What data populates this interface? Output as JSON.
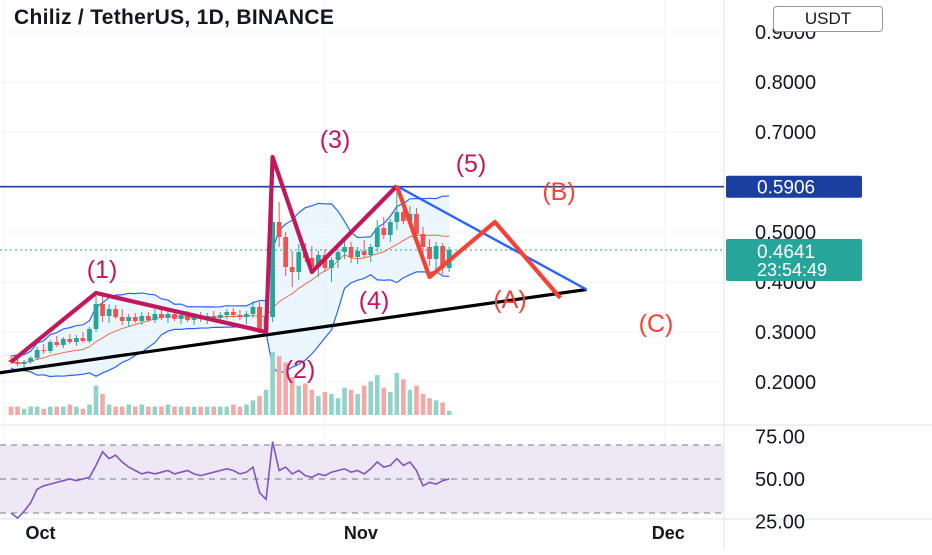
{
  "header": {
    "title": "Chiliz / TetherUS, 1D, BINANCE",
    "currency_button": "USDT"
  },
  "price_axis": {
    "ticks": [
      "0.9000",
      "0.8000",
      "0.7000",
      "0.5000",
      "0.4000",
      "0.3000",
      "0.2000"
    ],
    "line_label": "0.5906",
    "current_price": "0.4641",
    "countdown": "23:54:49"
  },
  "rsi_axis": {
    "ticks": [
      "75.00",
      "50.00",
      "25.00"
    ]
  },
  "time_axis": {
    "ticks": [
      "Oct",
      "Nov",
      "Dec"
    ]
  },
  "annotations": {
    "w1": "(1)",
    "w2": "(2)",
    "w3": "(3)",
    "w4": "(4)",
    "w5": "(5)",
    "wa": "(A)",
    "wb": "(B)",
    "wc": "(C)"
  },
  "colors": {
    "up": "#26a69a",
    "down": "#ef5350",
    "impulse": "#c2185b",
    "corrective": "#f44336",
    "bands": "#2962ff",
    "band_fill": "#e3f2fd",
    "rsi_line": "#7e57c2",
    "rsi_band": "#ede7f6",
    "level_line": "#1a3fa0"
  },
  "chart_data": {
    "type": "candlestick",
    "title": "Chiliz / TetherUS, 1D, BINANCE",
    "ylim": [
      0.1,
      0.95
    ],
    "candles": [
      [
        0.244,
        0.252,
        0.236,
        0.24
      ],
      [
        0.24,
        0.248,
        0.232,
        0.236
      ],
      [
        0.236,
        0.244,
        0.228,
        0.24
      ],
      [
        0.24,
        0.252,
        0.236,
        0.248
      ],
      [
        0.248,
        0.27,
        0.244,
        0.264
      ],
      [
        0.264,
        0.276,
        0.256,
        0.262
      ],
      [
        0.262,
        0.284,
        0.258,
        0.28
      ],
      [
        0.28,
        0.292,
        0.27,
        0.274
      ],
      [
        0.274,
        0.29,
        0.268,
        0.286
      ],
      [
        0.286,
        0.296,
        0.276,
        0.28
      ],
      [
        0.28,
        0.294,
        0.272,
        0.288
      ],
      [
        0.288,
        0.3,
        0.278,
        0.282
      ],
      [
        0.282,
        0.31,
        0.278,
        0.306
      ],
      [
        0.306,
        0.372,
        0.3,
        0.356
      ],
      [
        0.356,
        0.378,
        0.32,
        0.332
      ],
      [
        0.332,
        0.356,
        0.318,
        0.346
      ],
      [
        0.346,
        0.354,
        0.326,
        0.33
      ],
      [
        0.33,
        0.346,
        0.314,
        0.322
      ],
      [
        0.322,
        0.336,
        0.31,
        0.33
      ],
      [
        0.33,
        0.338,
        0.318,
        0.322
      ],
      [
        0.322,
        0.34,
        0.314,
        0.332
      ],
      [
        0.332,
        0.34,
        0.32,
        0.324
      ],
      [
        0.324,
        0.346,
        0.318,
        0.336
      ],
      [
        0.336,
        0.344,
        0.324,
        0.328
      ],
      [
        0.328,
        0.342,
        0.318,
        0.336
      ],
      [
        0.336,
        0.344,
        0.322,
        0.326
      ],
      [
        0.326,
        0.34,
        0.316,
        0.334
      ],
      [
        0.334,
        0.342,
        0.32,
        0.324
      ],
      [
        0.324,
        0.338,
        0.314,
        0.33
      ],
      [
        0.33,
        0.34,
        0.32,
        0.326
      ],
      [
        0.326,
        0.338,
        0.316,
        0.332
      ],
      [
        0.332,
        0.342,
        0.322,
        0.328
      ],
      [
        0.328,
        0.34,
        0.318,
        0.334
      ],
      [
        0.334,
        0.346,
        0.326,
        0.34
      ],
      [
        0.34,
        0.348,
        0.328,
        0.334
      ],
      [
        0.334,
        0.344,
        0.324,
        0.33
      ],
      [
        0.33,
        0.342,
        0.316,
        0.336
      ],
      [
        0.336,
        0.362,
        0.328,
        0.35
      ],
      [
        0.35,
        0.36,
        0.3,
        0.306
      ],
      [
        0.306,
        0.336,
        0.296,
        0.33
      ],
      [
        0.33,
        0.65,
        0.32,
        0.52
      ],
      [
        0.52,
        0.56,
        0.47,
        0.49
      ],
      [
        0.49,
        0.5,
        0.412,
        0.43
      ],
      [
        0.43,
        0.462,
        0.39,
        0.42
      ],
      [
        0.42,
        0.476,
        0.404,
        0.46
      ],
      [
        0.46,
        0.478,
        0.44,
        0.448
      ],
      [
        0.448,
        0.472,
        0.424,
        0.43
      ],
      [
        0.43,
        0.462,
        0.41,
        0.454
      ],
      [
        0.454,
        0.466,
        0.42,
        0.428
      ],
      [
        0.428,
        0.45,
        0.4,
        0.444
      ],
      [
        0.444,
        0.466,
        0.428,
        0.46
      ],
      [
        0.46,
        0.49,
        0.446,
        0.47
      ],
      [
        0.47,
        0.48,
        0.438,
        0.45
      ],
      [
        0.45,
        0.47,
        0.436,
        0.462
      ],
      [
        0.462,
        0.484,
        0.448,
        0.454
      ],
      [
        0.454,
        0.476,
        0.44,
        0.47
      ],
      [
        0.47,
        0.524,
        0.46,
        0.508
      ],
      [
        0.508,
        0.53,
        0.486,
        0.494
      ],
      [
        0.494,
        0.526,
        0.48,
        0.52
      ],
      [
        0.52,
        0.592,
        0.504,
        0.54
      ],
      [
        0.54,
        0.562,
        0.516,
        0.522
      ],
      [
        0.522,
        0.552,
        0.508,
        0.536
      ],
      [
        0.536,
        0.548,
        0.488,
        0.496
      ],
      [
        0.496,
        0.51,
        0.454,
        0.47
      ],
      [
        0.47,
        0.486,
        0.432,
        0.446
      ],
      [
        0.446,
        0.48,
        0.42,
        0.472
      ],
      [
        0.472,
        0.478,
        0.416,
        0.428
      ],
      [
        0.428,
        0.47,
        0.42,
        0.464
      ]
    ],
    "volume": [
      4,
      4,
      3,
      4,
      4,
      3,
      4,
      4,
      4,
      5,
      4,
      3,
      5,
      14,
      10,
      5,
      4,
      4,
      5,
      4,
      5,
      4,
      4,
      4,
      5,
      4,
      4,
      4,
      4,
      4,
      4,
      4,
      4,
      4,
      5,
      4,
      5,
      7,
      9,
      12,
      30,
      28,
      25,
      18,
      14,
      15,
      12,
      9,
      11,
      10,
      8,
      13,
      12,
      10,
      14,
      16,
      19,
      13,
      11,
      20,
      17,
      12,
      14,
      10,
      8,
      7,
      6,
      2
    ],
    "rsi": [
      30,
      27,
      31,
      36,
      44,
      46,
      47,
      48,
      49,
      50,
      49,
      50,
      51,
      58,
      66,
      62,
      64,
      60,
      57,
      55,
      53,
      54,
      53,
      54,
      55,
      53,
      54,
      55,
      53,
      52,
      53,
      54,
      55,
      56,
      55,
      53,
      54,
      57,
      42,
      38,
      72,
      55,
      57,
      53,
      55,
      52,
      51,
      53,
      52,
      54,
      55,
      56,
      54,
      55,
      53,
      56,
      60,
      57,
      58,
      62,
      58,
      60,
      55,
      46,
      48,
      47,
      49,
      50
    ],
    "rsi_band": [
      30,
      70
    ],
    "horizontal_line": 0.5906,
    "current_price": 0.4641,
    "countdown": "23:54:49",
    "x_ticks": [
      "Oct",
      "Nov",
      "Dec"
    ],
    "y_ticks": [
      0.9,
      0.8,
      0.7,
      0.5,
      0.4,
      0.3,
      0.2
    ],
    "rsi_ticks": [
      75,
      50,
      25
    ],
    "elliott_impulse": [
      {
        "index": 0,
        "price": 0.24,
        "label": ""
      },
      {
        "index": 13,
        "price": 0.378,
        "label": "(1)"
      },
      {
        "index": 39,
        "price": 0.3,
        "label": "(2)"
      },
      {
        "index": 40,
        "price": 0.65,
        "label": "(3)"
      },
      {
        "index": 46,
        "price": 0.42,
        "label": "(4)"
      },
      {
        "index": 59,
        "price": 0.592,
        "label": "(5)"
      }
    ],
    "elliott_corrective": [
      {
        "index": 59,
        "price": 0.592,
        "label": ""
      },
      {
        "index": 64,
        "price": 0.41,
        "label": "(A)"
      },
      {
        "index": 74,
        "price": 0.52,
        "label": "(B)"
      },
      {
        "index": 84,
        "price": 0.368,
        "label": "(C)"
      }
    ],
    "support_trendline": [
      {
        "index": -2,
        "price": 0.218
      },
      {
        "index": 88,
        "price": 0.385
      }
    ],
    "resistance_trendline": [
      {
        "index": 59,
        "price": 0.592
      },
      {
        "index": 88,
        "price": 0.385
      }
    ]
  }
}
